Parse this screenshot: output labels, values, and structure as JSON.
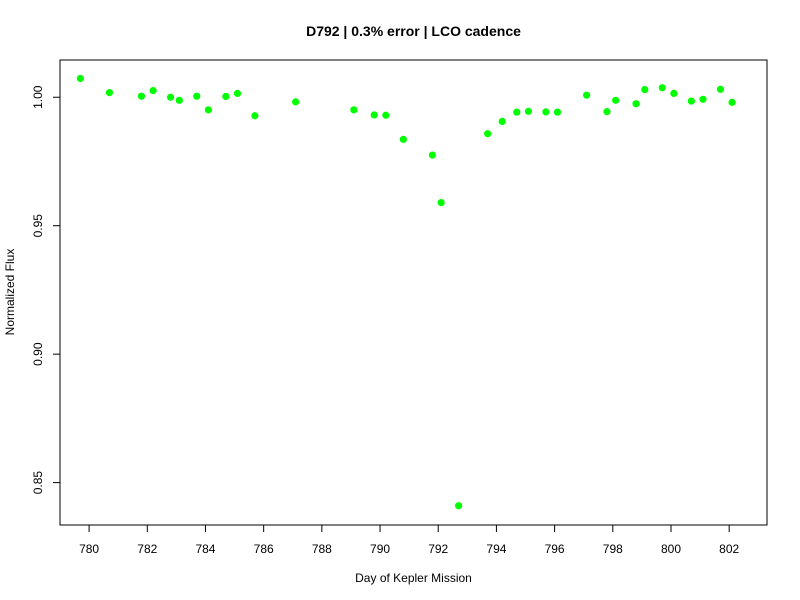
{
  "chart_data": {
    "type": "scatter",
    "title": "D792 | 0.3% error | LCO cadence",
    "xlabel": "Day of Kepler Mission",
    "ylabel": "Normalized Flux",
    "xlim": [
      779,
      803.3
    ],
    "ylim": [
      0.8335,
      1.0145
    ],
    "xticks": [
      780,
      782,
      784,
      786,
      788,
      790,
      792,
      794,
      796,
      798,
      800,
      802
    ],
    "xtick_labels": [
      "780",
      "782",
      "784",
      "786",
      "788",
      "790",
      "792",
      "794",
      "796",
      "798",
      "800",
      "802"
    ],
    "yticks": [
      0.85,
      0.9,
      0.95,
      1.0
    ],
    "ytick_labels": [
      "0.85",
      "0.90",
      "0.95",
      "1.00"
    ],
    "grid": false,
    "marker_color": "#00ff00",
    "series": [
      {
        "points": [
          [
            779.7,
            1.0073
          ],
          [
            780.7,
            1.0018
          ],
          [
            781.8,
            1.0004
          ],
          [
            782.2,
            1.0026
          ],
          [
            782.8,
            1.0
          ],
          [
            783.1,
            0.9988
          ],
          [
            783.7,
            1.0004
          ],
          [
            784.1,
            0.9951
          ],
          [
            784.7,
            1.0003
          ],
          [
            785.1,
            1.0015
          ],
          [
            785.7,
            0.9928
          ],
          [
            787.1,
            0.9982
          ],
          [
            789.1,
            0.9951
          ],
          [
            789.8,
            0.9931
          ],
          [
            790.2,
            0.993
          ],
          [
            790.8,
            0.9836
          ],
          [
            791.8,
            0.9775
          ],
          [
            792.1,
            0.959
          ],
          [
            792.7,
            0.841
          ],
          [
            793.7,
            0.9858
          ],
          [
            794.2,
            0.9906
          ],
          [
            794.7,
            0.9942
          ],
          [
            795.1,
            0.9945
          ],
          [
            795.7,
            0.9943
          ],
          [
            796.1,
            0.9942
          ],
          [
            797.1,
            1.0008
          ],
          [
            797.8,
            0.9944
          ],
          [
            798.1,
            0.9988
          ],
          [
            798.8,
            0.9975
          ],
          [
            799.1,
            1.003
          ],
          [
            799.7,
            1.0037
          ],
          [
            800.1,
            1.0015
          ],
          [
            800.7,
            0.9985
          ],
          [
            801.1,
            0.9992
          ],
          [
            801.7,
            1.0031
          ],
          [
            802.1,
            0.998
          ]
        ]
      }
    ]
  }
}
